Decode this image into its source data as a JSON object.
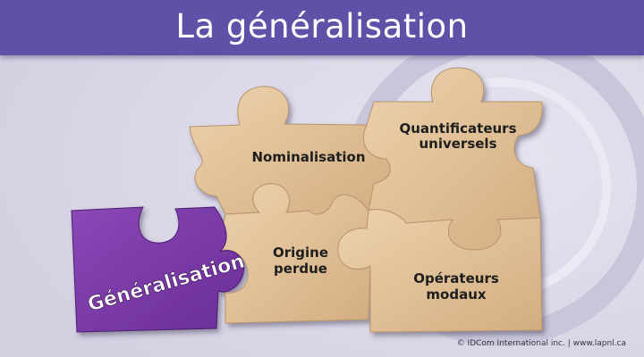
{
  "title": "La généralisation",
  "pieces": {
    "nominalisation": "Nominalisation",
    "quantificateurs": [
      "Quantificateurs",
      "universels"
    ],
    "origine": [
      "Origine",
      "perdue"
    ],
    "operateurs": [
      "Opérateurs",
      "modaux"
    ],
    "generalisation": "Généralisation"
  },
  "footer": "© IDCom International inc. | www.lapnl.ca",
  "colors": {
    "title_bar": "#5e52a8",
    "background": "#dfdde9",
    "wood": "#e3c49c",
    "purple_piece": "#7a3aa6"
  }
}
